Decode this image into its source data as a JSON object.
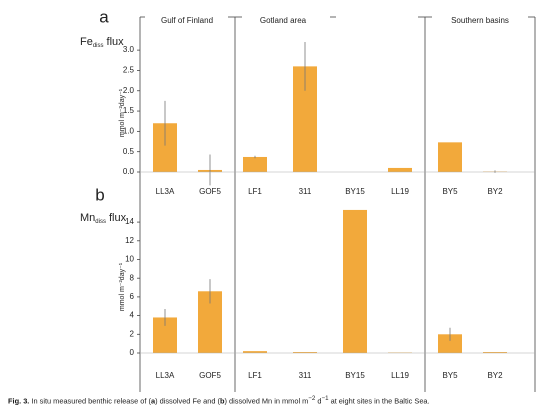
{
  "groups": [
    "Gulf of Finland",
    "Gotland area",
    "Southern basins"
  ],
  "chart_data": [
    {
      "type": "bar",
      "panel": "a",
      "title": {
        "main": "Fe",
        "sub": "diss",
        "rest": "flux"
      },
      "ylabel": "mmol m⁻²day⁻¹",
      "categories": [
        "LL3A",
        "GOF5",
        "LF1",
        "311",
        "BY15",
        "LL19",
        "BY5",
        "BY2"
      ],
      "values": [
        1.2,
        0.05,
        0.37,
        2.6,
        0,
        0.1,
        0.73,
        0.01
      ],
      "errors": [
        0.55,
        0.38,
        0.03,
        0.6,
        null,
        null,
        null,
        0.03
      ],
      "color": "#f2a93b",
      "ylim": [
        0,
        3.2
      ],
      "yticks": [
        {
          "value": 0,
          "label": "0.0"
        },
        0.5,
        {
          "value": 1,
          "label": "1.0"
        },
        1.5,
        {
          "value": 2,
          "label": "2.0"
        },
        2.5,
        {
          "value": 3,
          "label": "3.0"
        }
      ]
    },
    {
      "type": "bar",
      "panel": "b",
      "title": {
        "main": "Mn",
        "sub": "diss",
        "rest": "flux"
      },
      "ylabel": "mmol m⁻²day⁻¹",
      "categories": [
        "LL3A",
        "GOF5",
        "LF1",
        "311",
        "BY15",
        "LL19",
        "BY5",
        "BY2"
      ],
      "values": [
        3.8,
        6.6,
        0.2,
        0.1,
        15.3,
        0.05,
        2.0,
        0.1
      ],
      "errors": [
        0.9,
        1.3,
        null,
        null,
        null,
        null,
        0.7,
        null
      ],
      "color": "#f2a93b",
      "ylim": [
        0,
        15.4
      ],
      "yticks": [
        0,
        2,
        4,
        6,
        8,
        10,
        12,
        14
      ]
    }
  ],
  "caption": [
    "Fig. 3.",
    " In situ measured benthic release of (",
    "a",
    ") dissolved Fe and (",
    "b",
    ") dissolved Mn in mmol m",
    "−2",
    " d",
    "−1",
    " at eight sites in the Baltic Sea."
  ]
}
